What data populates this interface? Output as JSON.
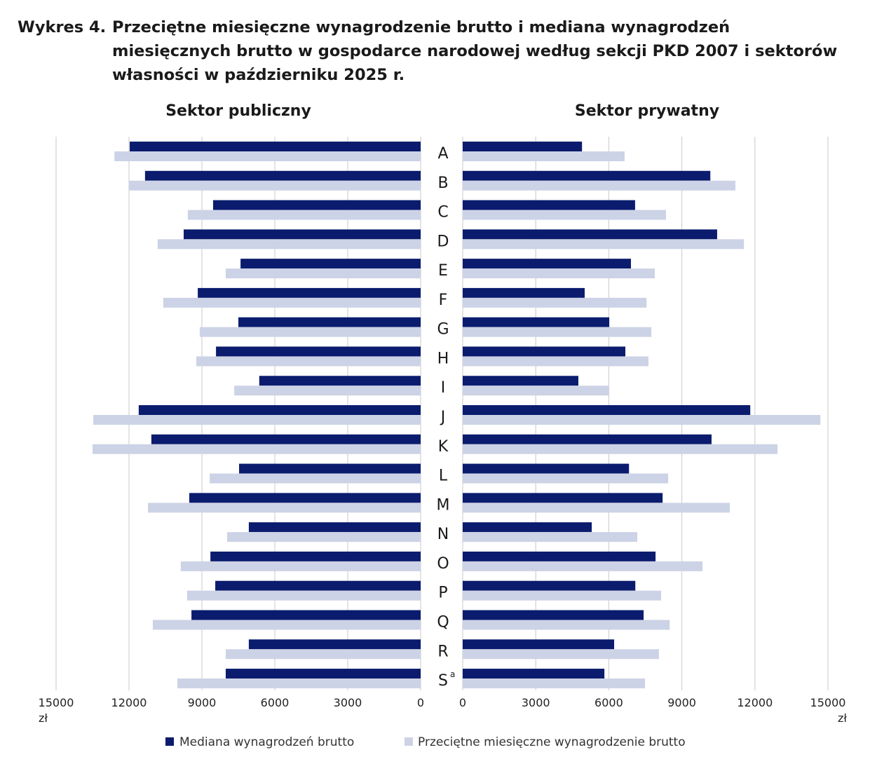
{
  "title_number": "Wykres 4.",
  "title_lines": [
    "Przeciętne miesięczne wynagrodzenie brutto i mediana wynagrodzeń",
    "miesięcznych brutto w gospodarce narodowej według sekcji PKD 2007 i sektorów",
    "własności w październiku 2025 r."
  ],
  "colors": {
    "median": "#0b1c6e",
    "average": "#cdd3e6",
    "grid": "#c8c8c8"
  },
  "chart_data": [
    {
      "type": "bar",
      "orientation": "horizontal",
      "direction": "right-to-left",
      "title": "Sektor publiczny",
      "categories": [
        "A",
        "B",
        "C",
        "D",
        "E",
        "F",
        "G",
        "H",
        "I",
        "J",
        "K",
        "L",
        "M",
        "N",
        "O",
        "P",
        "Q",
        "R",
        "S"
      ],
      "xlim": [
        0,
        15000
      ],
      "xticks": [
        "0",
        "3000",
        "6000",
        "9000",
        "12000",
        "15000"
      ],
      "xunit": "zł",
      "grid": true,
      "series": [
        {
          "name": "Mediana wynagrodzeń brutto",
          "values": [
            11970,
            11340,
            8540,
            9750,
            7410,
            9170,
            7500,
            8420,
            6640,
            11600,
            11080,
            7470,
            9520,
            7070,
            8650,
            8450,
            9430,
            7070,
            8020
          ]
        },
        {
          "name": "Przeciętne miesięczne wynagrodzenie brutto",
          "values": [
            12600,
            12000,
            9580,
            10820,
            8020,
            10590,
            9090,
            9230,
            7670,
            13470,
            13500,
            8680,
            11220,
            7960,
            9870,
            9610,
            11020,
            8020,
            10010
          ]
        }
      ]
    },
    {
      "type": "bar",
      "orientation": "horizontal",
      "direction": "left-to-right",
      "title": "Sektor prywatny",
      "categories": [
        "A",
        "B",
        "C",
        "D",
        "E",
        "F",
        "G",
        "H",
        "I",
        "J",
        "K",
        "L",
        "M",
        "N",
        "O",
        "P",
        "Q",
        "R",
        "S"
      ],
      "xlim": [
        0,
        15000
      ],
      "xticks": [
        "0",
        "3000",
        "6000",
        "9000",
        "12000",
        "15000"
      ],
      "xunit": "zł",
      "grid": true,
      "series": [
        {
          "name": "Mediana wynagrodzeń brutto",
          "values": [
            4900,
            10170,
            7080,
            10450,
            6910,
            5010,
            6020,
            6680,
            4750,
            11810,
            10220,
            6830,
            8210,
            5300,
            7920,
            7090,
            7430,
            6220,
            5820
          ]
        },
        {
          "name": "Przeciętne miesięczne wynagrodzenie brutto",
          "values": [
            6650,
            11200,
            8350,
            11550,
            7890,
            7550,
            7750,
            7630,
            6020,
            14690,
            12930,
            8440,
            10970,
            7170,
            9850,
            8150,
            8500,
            8060,
            7490
          ]
        }
      ]
    }
  ],
  "category_footnote": {
    "S": "a"
  },
  "legend": [
    "Mediana wynagrodzeń brutto",
    "Przeciętne miesięczne wynagrodzenie brutto"
  ]
}
